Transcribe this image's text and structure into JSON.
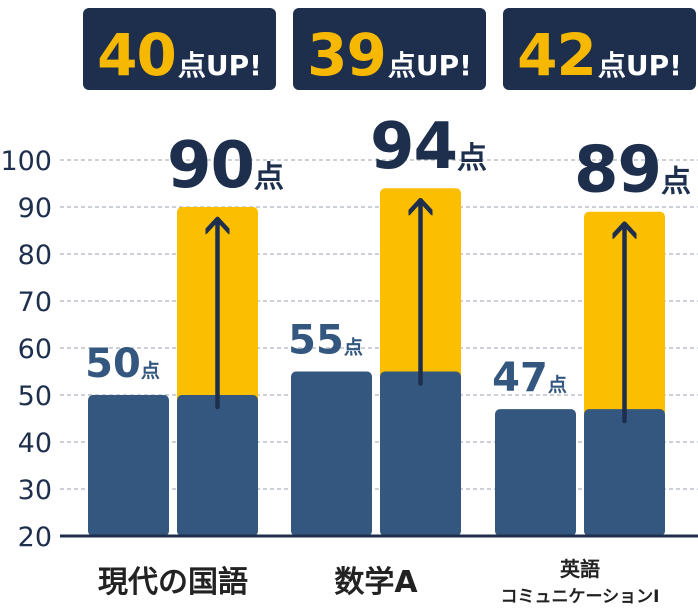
{
  "badges": [
    {
      "num": "40",
      "unit": "点UP!"
    },
    {
      "num": "39",
      "unit": "点UP!"
    },
    {
      "num": "42",
      "unit": "点UP!"
    }
  ],
  "chart_data": {
    "type": "bar",
    "categories": [
      "現代の国語",
      "数学A",
      "英語\nコミュニケーションⅠ"
    ],
    "series": [
      {
        "values": [
          50,
          55,
          47
        ]
      },
      {
        "values": [
          90,
          94,
          89
        ]
      }
    ],
    "before_labels": [
      "50",
      "55",
      "47"
    ],
    "after_labels": [
      "90",
      "94",
      "89"
    ],
    "unit": "点",
    "yticks": [
      20,
      30,
      40,
      50,
      60,
      70,
      80,
      90,
      100
    ],
    "ylim": [
      20,
      100
    ],
    "grid": true,
    "colors": {
      "before": "#33577e",
      "gain": "#fbbe00",
      "arrow": "#1e2f4d",
      "label": "#33577e",
      "big_label": "#1e2f4d",
      "badge_bg": "#1e2f4d",
      "badge_num": "#f6b800"
    }
  }
}
